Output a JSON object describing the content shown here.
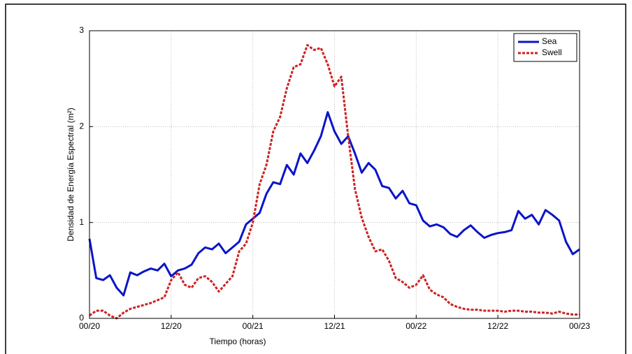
{
  "chart_data": {
    "type": "line",
    "xlabel": "Tiempo (horas)",
    "ylabel": "Densidad de Energía Espectral (m²)",
    "x": [
      0,
      1,
      2,
      3,
      4,
      5,
      6,
      7,
      8,
      9,
      10,
      11,
      12,
      13,
      14,
      15,
      16,
      17,
      18,
      19,
      20,
      21,
      22,
      23,
      24,
      25,
      26,
      27,
      28,
      29,
      30,
      31,
      32,
      33,
      34,
      35,
      36,
      37,
      38,
      39,
      40,
      41,
      42,
      43,
      44,
      45,
      46,
      47,
      48,
      49,
      50,
      51,
      52,
      53,
      54,
      55,
      56,
      57,
      58,
      59,
      60,
      61,
      62,
      63,
      64,
      65,
      66,
      67,
      68,
      69,
      70,
      71,
      72
    ],
    "series": [
      {
        "name": "Sea",
        "color": "#0a14c8",
        "dash": false,
        "values": [
          0.83,
          0.42,
          0.4,
          0.45,
          0.32,
          0.24,
          0.48,
          0.45,
          0.49,
          0.52,
          0.5,
          0.57,
          0.44,
          0.5,
          0.52,
          0.56,
          0.68,
          0.74,
          0.72,
          0.78,
          0.68,
          0.74,
          0.8,
          0.98,
          1.04,
          1.1,
          1.3,
          1.42,
          1.4,
          1.6,
          1.5,
          1.72,
          1.62,
          1.75,
          1.9,
          2.15,
          1.95,
          1.82,
          1.9,
          1.72,
          1.52,
          1.62,
          1.55,
          1.38,
          1.36,
          1.25,
          1.33,
          1.2,
          1.18,
          1.02,
          0.96,
          0.98,
          0.95,
          0.88,
          0.85,
          0.92,
          0.97,
          0.9,
          0.84,
          0.87,
          0.89,
          0.9,
          0.92,
          1.12,
          1.04,
          1.08,
          0.98,
          1.13,
          1.08,
          1.02,
          0.8,
          0.67,
          0.72
        ]
      },
      {
        "name": "Swell",
        "color": "#cc2222",
        "dash": true,
        "values": [
          0.03,
          0.08,
          0.08,
          0.03,
          0.0,
          0.06,
          0.1,
          0.12,
          0.14,
          0.16,
          0.19,
          0.22,
          0.4,
          0.48,
          0.35,
          0.32,
          0.42,
          0.44,
          0.38,
          0.28,
          0.36,
          0.44,
          0.7,
          0.78,
          1.0,
          1.4,
          1.6,
          1.95,
          2.1,
          2.4,
          2.62,
          2.65,
          2.85,
          2.8,
          2.82,
          2.65,
          2.42,
          2.52,
          1.9,
          1.35,
          1.05,
          0.85,
          0.7,
          0.72,
          0.6,
          0.42,
          0.38,
          0.32,
          0.35,
          0.45,
          0.3,
          0.25,
          0.22,
          0.15,
          0.12,
          0.1,
          0.09,
          0.09,
          0.08,
          0.08,
          0.08,
          0.07,
          0.08,
          0.08,
          0.07,
          0.07,
          0.06,
          0.06,
          0.05,
          0.07,
          0.05,
          0.04,
          0.04
        ]
      }
    ],
    "xlim": [
      0,
      72
    ],
    "xticks": [
      {
        "value": 0,
        "label": "00/20"
      },
      {
        "value": 12,
        "label": "12/20"
      },
      {
        "value": 24,
        "label": "00/21"
      },
      {
        "value": 36,
        "label": "12/21"
      },
      {
        "value": 48,
        "label": "00/22"
      },
      {
        "value": 60,
        "label": "12/22"
      },
      {
        "value": 72,
        "label": "00/23"
      }
    ],
    "ylim": [
      0,
      3
    ],
    "yticks": [
      0,
      1,
      2,
      3
    ],
    "grid": true,
    "legend": "northeast"
  }
}
